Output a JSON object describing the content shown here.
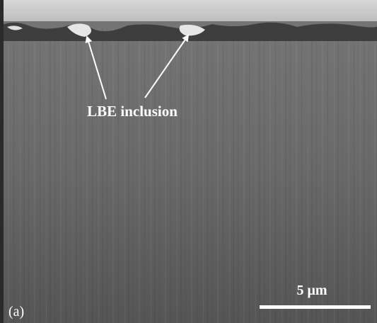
{
  "annotations": {
    "label": "LBE inclusion",
    "scale_bar": "5 μm",
    "panel": "(a)"
  }
}
